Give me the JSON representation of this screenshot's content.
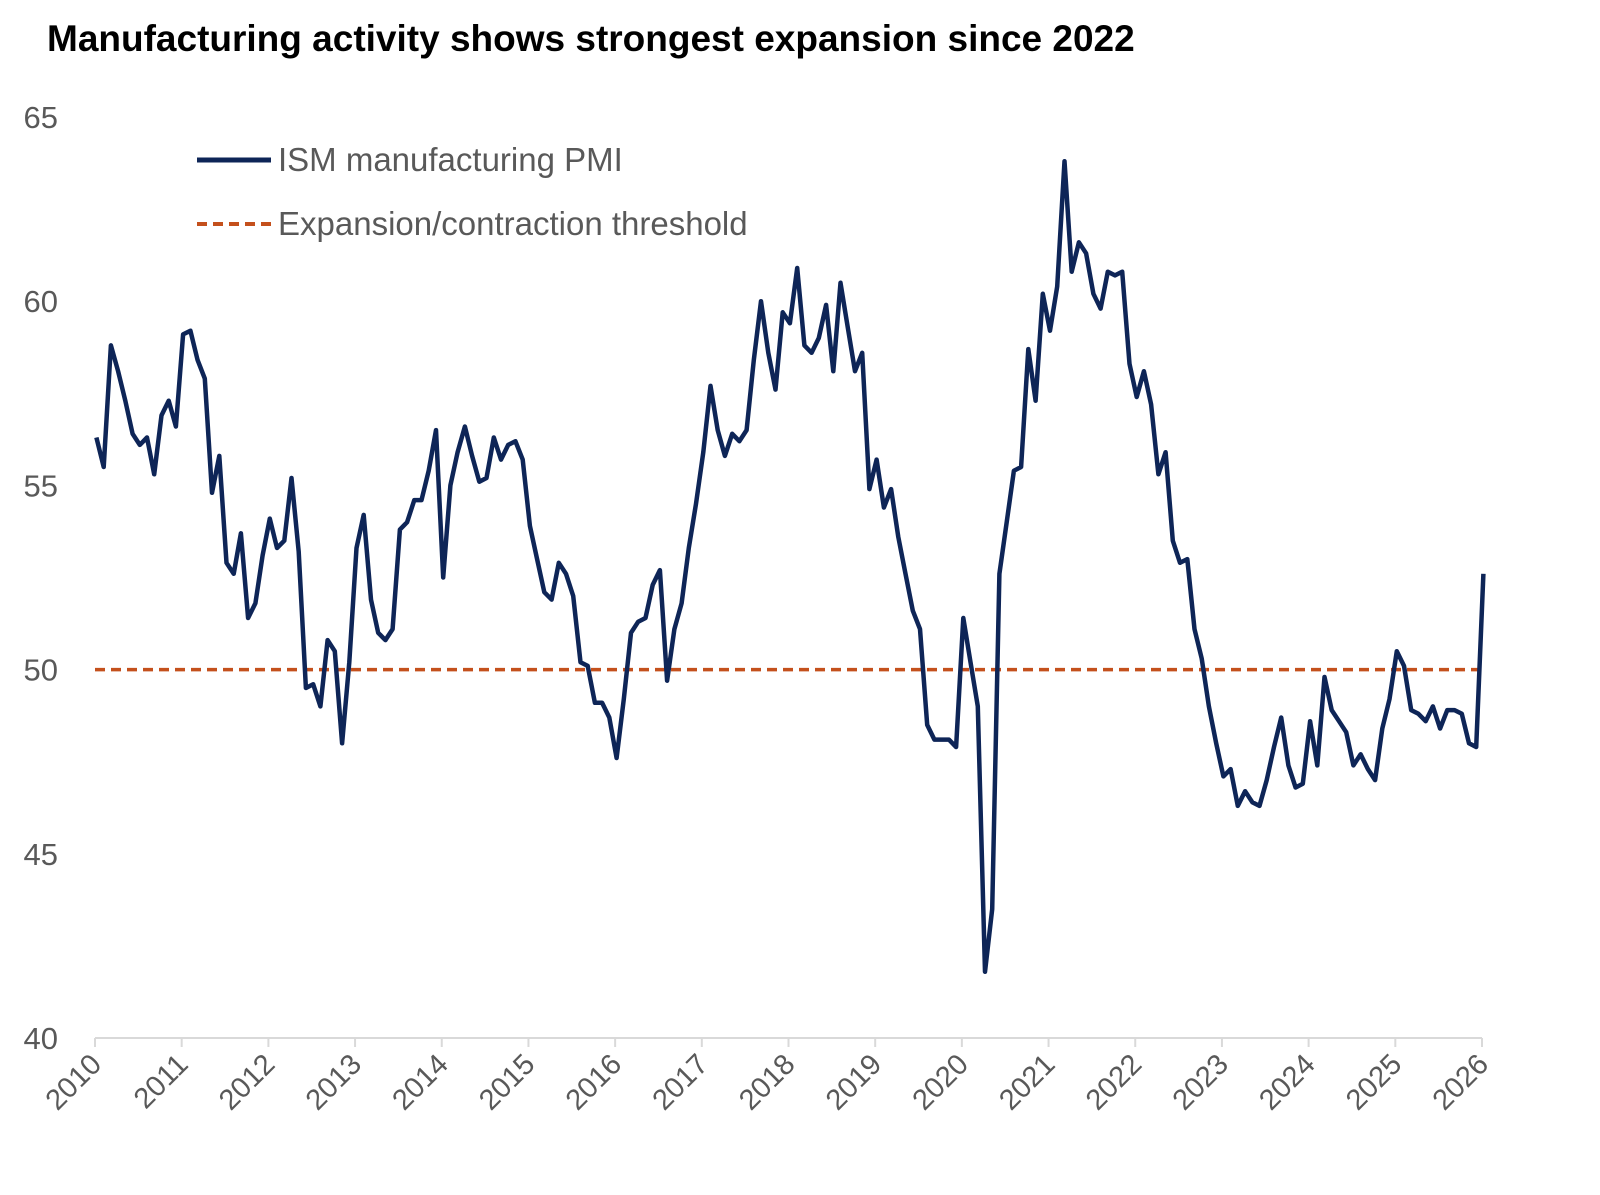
{
  "chart_data": {
    "type": "line",
    "title": "Manufacturing activity shows strongest expansion since 2022",
    "xlabel": "",
    "ylabel": "",
    "ylim": [
      40,
      65
    ],
    "yticks": [
      "40",
      "45",
      "50",
      "55",
      "60",
      "65"
    ],
    "xlim": [
      "2010-01",
      "2026-01"
    ],
    "xticks": [
      "2010",
      "2011",
      "2012",
      "2013",
      "2014",
      "2015",
      "2016",
      "2017",
      "2018",
      "2019",
      "2020",
      "2021",
      "2022",
      "2023",
      "2024",
      "2025",
      "2026"
    ],
    "grid": false,
    "legend_position": "top-left",
    "series": [
      {
        "name": "ISM manufacturing PMI",
        "color": "#0e2557",
        "style": "solid",
        "start": "2010-01",
        "frequency": "monthly",
        "values": [
          56.3,
          55.5,
          58.8,
          58.1,
          57.3,
          56.4,
          56.1,
          56.3,
          55.3,
          56.9,
          57.3,
          56.6,
          59.1,
          59.2,
          58.4,
          57.9,
          54.8,
          55.8,
          52.9,
          52.6,
          53.7,
          51.4,
          51.8,
          53.1,
          54.1,
          53.3,
          53.5,
          55.2,
          53.2,
          49.5,
          49.6,
          49.0,
          50.8,
          50.5,
          48.0,
          50.2,
          53.3,
          54.2,
          51.9,
          51.0,
          50.8,
          51.1,
          53.8,
          54.0,
          54.6,
          54.6,
          55.4,
          56.5,
          52.5,
          55.0,
          55.9,
          56.6,
          55.8,
          55.1,
          55.2,
          56.3,
          55.7,
          56.1,
          56.2,
          55.7,
          53.9,
          53.0,
          52.1,
          51.9,
          52.9,
          52.6,
          52.0,
          50.2,
          50.1,
          49.1,
          49.1,
          48.7,
          47.6,
          49.2,
          51.0,
          51.3,
          51.4,
          52.3,
          52.7,
          49.7,
          51.1,
          51.8,
          53.3,
          54.5,
          55.9,
          57.7,
          56.5,
          55.8,
          56.4,
          56.2,
          56.5,
          58.4,
          60.0,
          58.6,
          57.6,
          59.7,
          59.4,
          60.9,
          58.8,
          58.6,
          59.0,
          59.9,
          58.1,
          60.5,
          59.3,
          58.1,
          58.6,
          54.9,
          55.7,
          54.4,
          54.9,
          53.6,
          52.6,
          51.6,
          51.1,
          48.5,
          48.1,
          48.1,
          48.1,
          47.9,
          51.4,
          50.2,
          49.0,
          41.8,
          43.5,
          52.6,
          54.0,
          55.4,
          55.5,
          58.7,
          57.3,
          60.2,
          59.2,
          60.4,
          63.8,
          60.8,
          61.6,
          61.3,
          60.2,
          59.8,
          60.8,
          60.7,
          60.8,
          58.3,
          57.4,
          58.1,
          57.2,
          55.3,
          55.9,
          53.5,
          52.9,
          53.0,
          51.1,
          50.3,
          49.0,
          48.0,
          47.1,
          47.3,
          46.3,
          46.7,
          46.4,
          46.3,
          47.0,
          47.9,
          48.7,
          47.4,
          46.8,
          46.9,
          48.6,
          47.4,
          49.8,
          48.9,
          48.6,
          48.3,
          47.4,
          47.7,
          47.3,
          47.0,
          48.4,
          49.2,
          50.5,
          50.1,
          48.9,
          48.8,
          48.6,
          49.0,
          48.4,
          48.9,
          48.9,
          48.8,
          48.0,
          47.9,
          52.6
        ]
      },
      {
        "name": "Expansion/contraction threshold",
        "color": "#c4501c",
        "style": "dashed",
        "constant": 50
      }
    ]
  }
}
